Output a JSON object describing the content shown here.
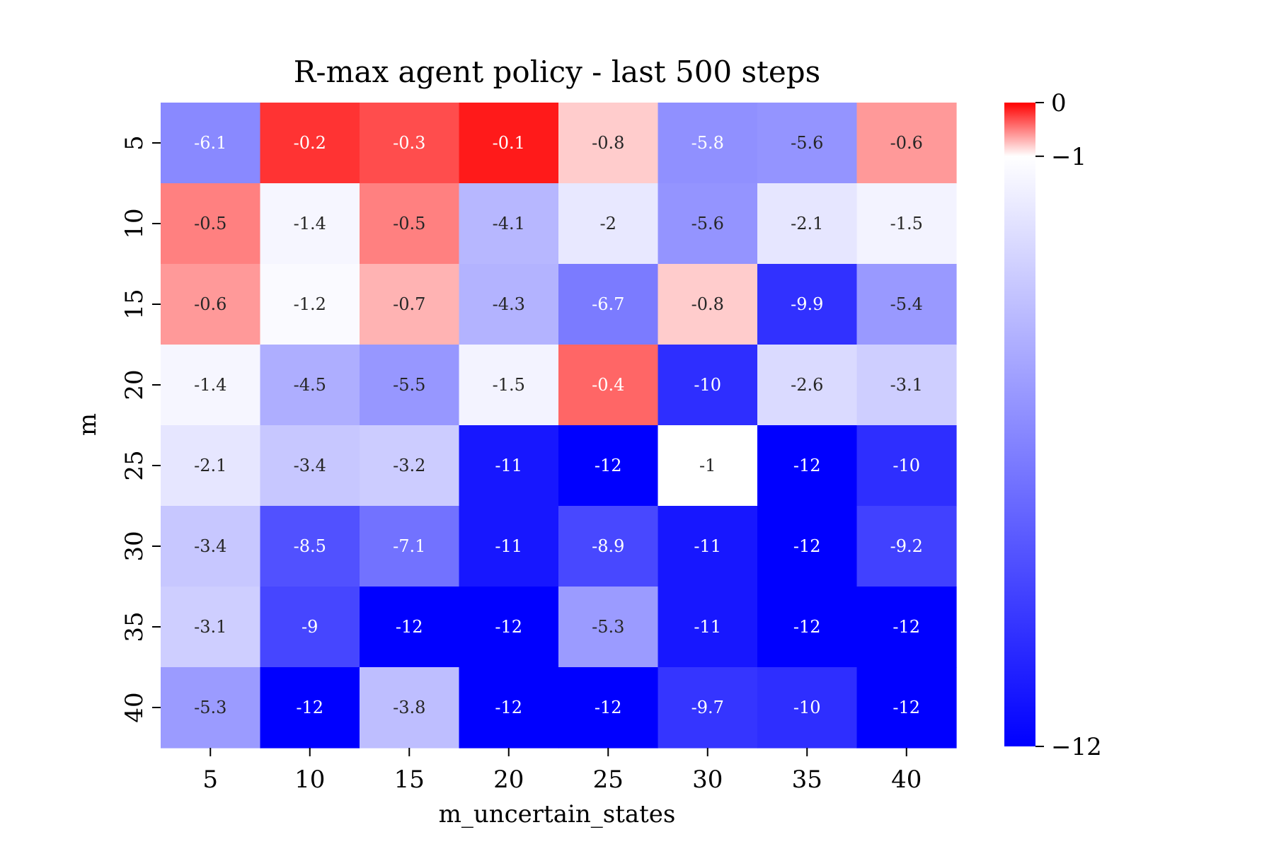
{
  "chart_data": {
    "type": "heatmap",
    "title": "R-max agent policy - last 500 steps",
    "xlabel": "m_uncertain_states",
    "ylabel": "m",
    "x_categories": [
      "5",
      "10",
      "15",
      "20",
      "25",
      "30",
      "35",
      "40"
    ],
    "y_categories": [
      "5",
      "10",
      "15",
      "20",
      "25",
      "30",
      "35",
      "40"
    ],
    "values": [
      [
        -6.1,
        -0.2,
        -0.3,
        -0.1,
        -0.8,
        -5.8,
        -5.6,
        -0.6
      ],
      [
        -0.5,
        -1.4,
        -0.5,
        -4.1,
        -2,
        -5.6,
        -2.1,
        -1.5
      ],
      [
        -0.6,
        -1.2,
        -0.7,
        -4.3,
        -6.7,
        -0.8,
        -9.9,
        -5.4
      ],
      [
        -1.4,
        -4.5,
        -5.5,
        -1.5,
        -0.4,
        -10,
        -2.6,
        -3.1
      ],
      [
        -2.1,
        -3.4,
        -3.2,
        -11,
        -12,
        -1,
        -12,
        -10
      ],
      [
        -3.4,
        -8.5,
        -7.1,
        -11,
        -8.9,
        -11,
        -12,
        -9.2
      ],
      [
        -3.1,
        -9,
        -12,
        -12,
        -5.3,
        -11,
        -12,
        -12
      ],
      [
        -5.3,
        -12,
        -3.8,
        -12,
        -12,
        -9.7,
        -10,
        -12
      ]
    ],
    "colorbar": {
      "min": -12,
      "center": -1,
      "max": 0,
      "ticks": [
        "0",
        "−1",
        "−12"
      ],
      "colors": {
        "low": "#0000ff",
        "center": "#ffffff",
        "high": "#ff0000"
      }
    },
    "grid": false,
    "legend": "none"
  }
}
